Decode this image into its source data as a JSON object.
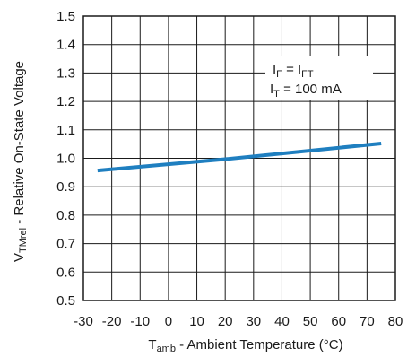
{
  "chart_data": {
    "type": "line",
    "title": "",
    "xlabel": {
      "symbol": "T",
      "subscript": "amb",
      "text": " - Ambient Temperature (°C)"
    },
    "ylabel": {
      "symbol": "V",
      "subscript": "TMrel",
      "text": " - Relative On-State Voltage"
    },
    "xlim": [
      -30,
      80
    ],
    "ylim": [
      0.5,
      1.5
    ],
    "xticks": [
      -30,
      -20,
      -10,
      0,
      10,
      20,
      30,
      40,
      50,
      60,
      70,
      80
    ],
    "yticks": [
      "0.5",
      "0.6",
      "0.7",
      "0.8",
      "0.9",
      "1.0",
      "1.1",
      "1.2",
      "1.3",
      "1.4",
      "1.5"
    ],
    "grid": true,
    "series": [
      {
        "color": "#1f7fc0",
        "x": [
          -25,
          20,
          75
        ],
        "y": [
          0.957,
          0.997,
          1.052
        ]
      }
    ],
    "annotation": {
      "line1": {
        "symbol": "I",
        "sub": "F",
        "eq": " = I",
        "sub2": "FT"
      },
      "line2": {
        "symbol": "I",
        "sub": "T",
        "eq": " = 100 mA"
      }
    }
  }
}
